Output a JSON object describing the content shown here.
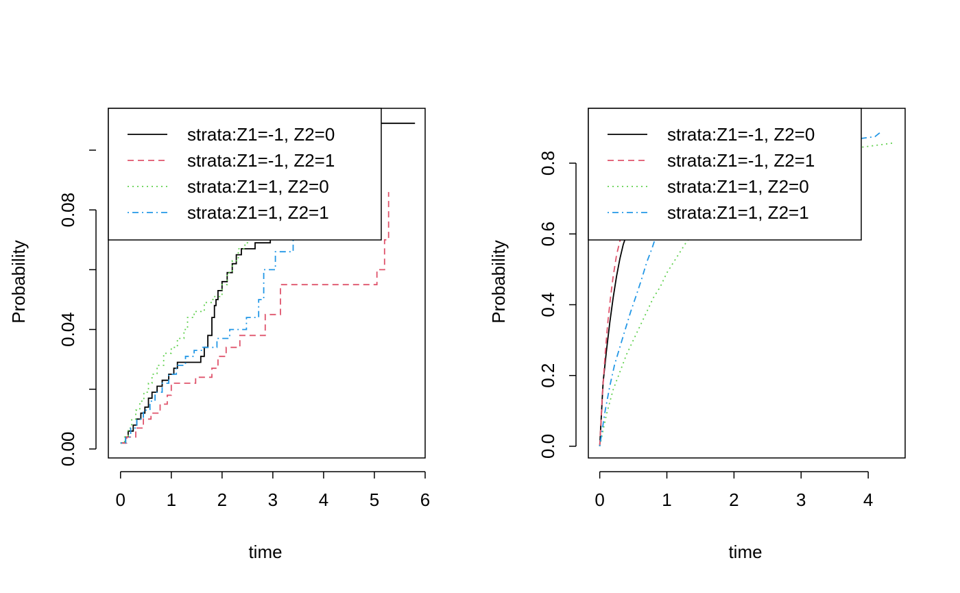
{
  "chart_data": [
    {
      "type": "line",
      "step": true,
      "title": "",
      "xlabel": "time",
      "ylabel": "Probability",
      "xlim": [
        0,
        6
      ],
      "ylim": [
        0,
        0.11
      ],
      "xticks": [
        "0",
        "1",
        "2",
        "3",
        "4",
        "5",
        "6"
      ],
      "yticks": [
        "0.00",
        "0.04",
        "0.08"
      ],
      "legend_position": "top-left",
      "series": [
        {
          "name": "strata:Z1=-1, Z2=0",
          "color": "#000000",
          "dash": "solid",
          "x": [
            0,
            0.1,
            0.15,
            0.25,
            0.32,
            0.4,
            0.48,
            0.55,
            0.62,
            0.72,
            0.82,
            0.95,
            1.05,
            1.12,
            1.58,
            1.65,
            1.72,
            1.8,
            1.85,
            1.88,
            1.92,
            2.0,
            2.1,
            2.2,
            2.28,
            2.38,
            2.65,
            2.95,
            3.1,
            5.1,
            5.8
          ],
          "y": [
            0.002,
            0.004,
            0.006,
            0.008,
            0.01,
            0.012,
            0.014,
            0.017,
            0.019,
            0.021,
            0.023,
            0.025,
            0.027,
            0.029,
            0.031,
            0.034,
            0.038,
            0.044,
            0.048,
            0.05,
            0.053,
            0.056,
            0.059,
            0.062,
            0.065,
            0.067,
            0.069,
            0.071,
            0.103,
            0.109,
            0.109
          ]
        },
        {
          "name": "strata:Z1=-1, Z2=1",
          "color": "#DF536B",
          "dash": "dashed",
          "x": [
            0,
            0.12,
            0.3,
            0.45,
            0.6,
            0.78,
            0.92,
            1.0,
            1.08,
            1.48,
            1.8,
            1.92,
            2.08,
            2.35,
            2.85,
            3.15,
            5.05,
            5.2,
            5.28
          ],
          "y": [
            0.002,
            0.004,
            0.007,
            0.01,
            0.012,
            0.015,
            0.018,
            0.022,
            0.022,
            0.024,
            0.027,
            0.031,
            0.034,
            0.038,
            0.045,
            0.055,
            0.06,
            0.07,
            0.086
          ]
        },
        {
          "name": "strata:Z1=1, Z2=0",
          "color": "#61D04F",
          "dash": "dotted",
          "x": [
            0,
            0.08,
            0.15,
            0.22,
            0.3,
            0.38,
            0.46,
            0.55,
            0.62,
            0.72,
            0.85,
            1.0,
            1.12,
            1.25,
            1.32,
            1.45,
            1.65,
            1.82,
            2.0,
            2.1,
            2.2,
            2.32,
            2.45,
            2.52
          ],
          "y": [
            0.002,
            0.004,
            0.007,
            0.01,
            0.013,
            0.016,
            0.019,
            0.022,
            0.025,
            0.028,
            0.032,
            0.034,
            0.037,
            0.04,
            0.044,
            0.046,
            0.049,
            0.051,
            0.055,
            0.059,
            0.063,
            0.067,
            0.069,
            0.072
          ]
        },
        {
          "name": "strata:Z1=1, Z2=1",
          "color": "#2297E6",
          "dash": "dotdash",
          "x": [
            0,
            0.1,
            0.2,
            0.32,
            0.45,
            0.58,
            0.68,
            0.82,
            0.95,
            1.1,
            1.28,
            1.45,
            1.62,
            1.9,
            2.15,
            2.48,
            2.72,
            2.82,
            3.05,
            3.4
          ],
          "y": [
            0.002,
            0.004,
            0.007,
            0.01,
            0.013,
            0.016,
            0.019,
            0.022,
            0.025,
            0.028,
            0.031,
            0.033,
            0.034,
            0.037,
            0.04,
            0.044,
            0.05,
            0.06,
            0.066,
            0.072
          ]
        }
      ]
    },
    {
      "type": "line",
      "step": false,
      "title": "",
      "xlabel": "time",
      "ylabel": "Probability",
      "xlim": [
        0,
        4.4
      ],
      "ylim": [
        0,
        0.95
      ],
      "xticks": [
        "0",
        "1",
        "2",
        "3",
        "4"
      ],
      "yticks": [
        "0.0",
        "0.2",
        "0.4",
        "0.6",
        "0.8"
      ],
      "legend_position": "top-left",
      "series": [
        {
          "name": "strata:Z1=-1, Z2=0",
          "color": "#000000",
          "dash": "solid",
          "x": [
            0,
            0.05,
            0.1,
            0.15,
            0.2,
            0.25,
            0.3,
            0.35,
            0.42
          ],
          "y": [
            0,
            0.18,
            0.27,
            0.35,
            0.42,
            0.48,
            0.53,
            0.57,
            0.61
          ]
        },
        {
          "name": "strata:Z1=-1, Z2=1",
          "color": "#DF536B",
          "dash": "dashed",
          "x": [
            0,
            0.04,
            0.08,
            0.12,
            0.16,
            0.2,
            0.25,
            0.3,
            0.35
          ],
          "y": [
            0,
            0.15,
            0.26,
            0.35,
            0.42,
            0.48,
            0.54,
            0.58,
            0.61
          ]
        },
        {
          "name": "strata:Z1=1, Z2=0",
          "color": "#61D04F",
          "dash": "dotted",
          "x": [
            0,
            0.1,
            0.2,
            0.3,
            0.4,
            0.5,
            0.6,
            0.7,
            0.8,
            0.9,
            1.0,
            1.1,
            1.2,
            1.3,
            2.0,
            3.0,
            3.5,
            3.9,
            4.1,
            4.3,
            4.4
          ],
          "y": [
            0,
            0.09,
            0.16,
            0.21,
            0.26,
            0.3,
            0.34,
            0.38,
            0.42,
            0.45,
            0.49,
            0.52,
            0.55,
            0.58,
            0.7,
            0.8,
            0.83,
            0.845,
            0.85,
            0.855,
            0.858
          ]
        },
        {
          "name": "strata:Z1=1, Z2=1",
          "color": "#2297E6",
          "dash": "dotdash",
          "x": [
            0,
            0.08,
            0.15,
            0.22,
            0.3,
            0.38,
            0.46,
            0.55,
            0.62,
            0.7,
            0.78,
            0.85,
            1.5,
            2.5,
            3.5,
            3.9,
            4.1,
            4.2
          ],
          "y": [
            0,
            0.1,
            0.17,
            0.23,
            0.28,
            0.33,
            0.38,
            0.43,
            0.47,
            0.52,
            0.56,
            0.6,
            0.72,
            0.81,
            0.86,
            0.87,
            0.875,
            0.89
          ]
        }
      ]
    }
  ]
}
